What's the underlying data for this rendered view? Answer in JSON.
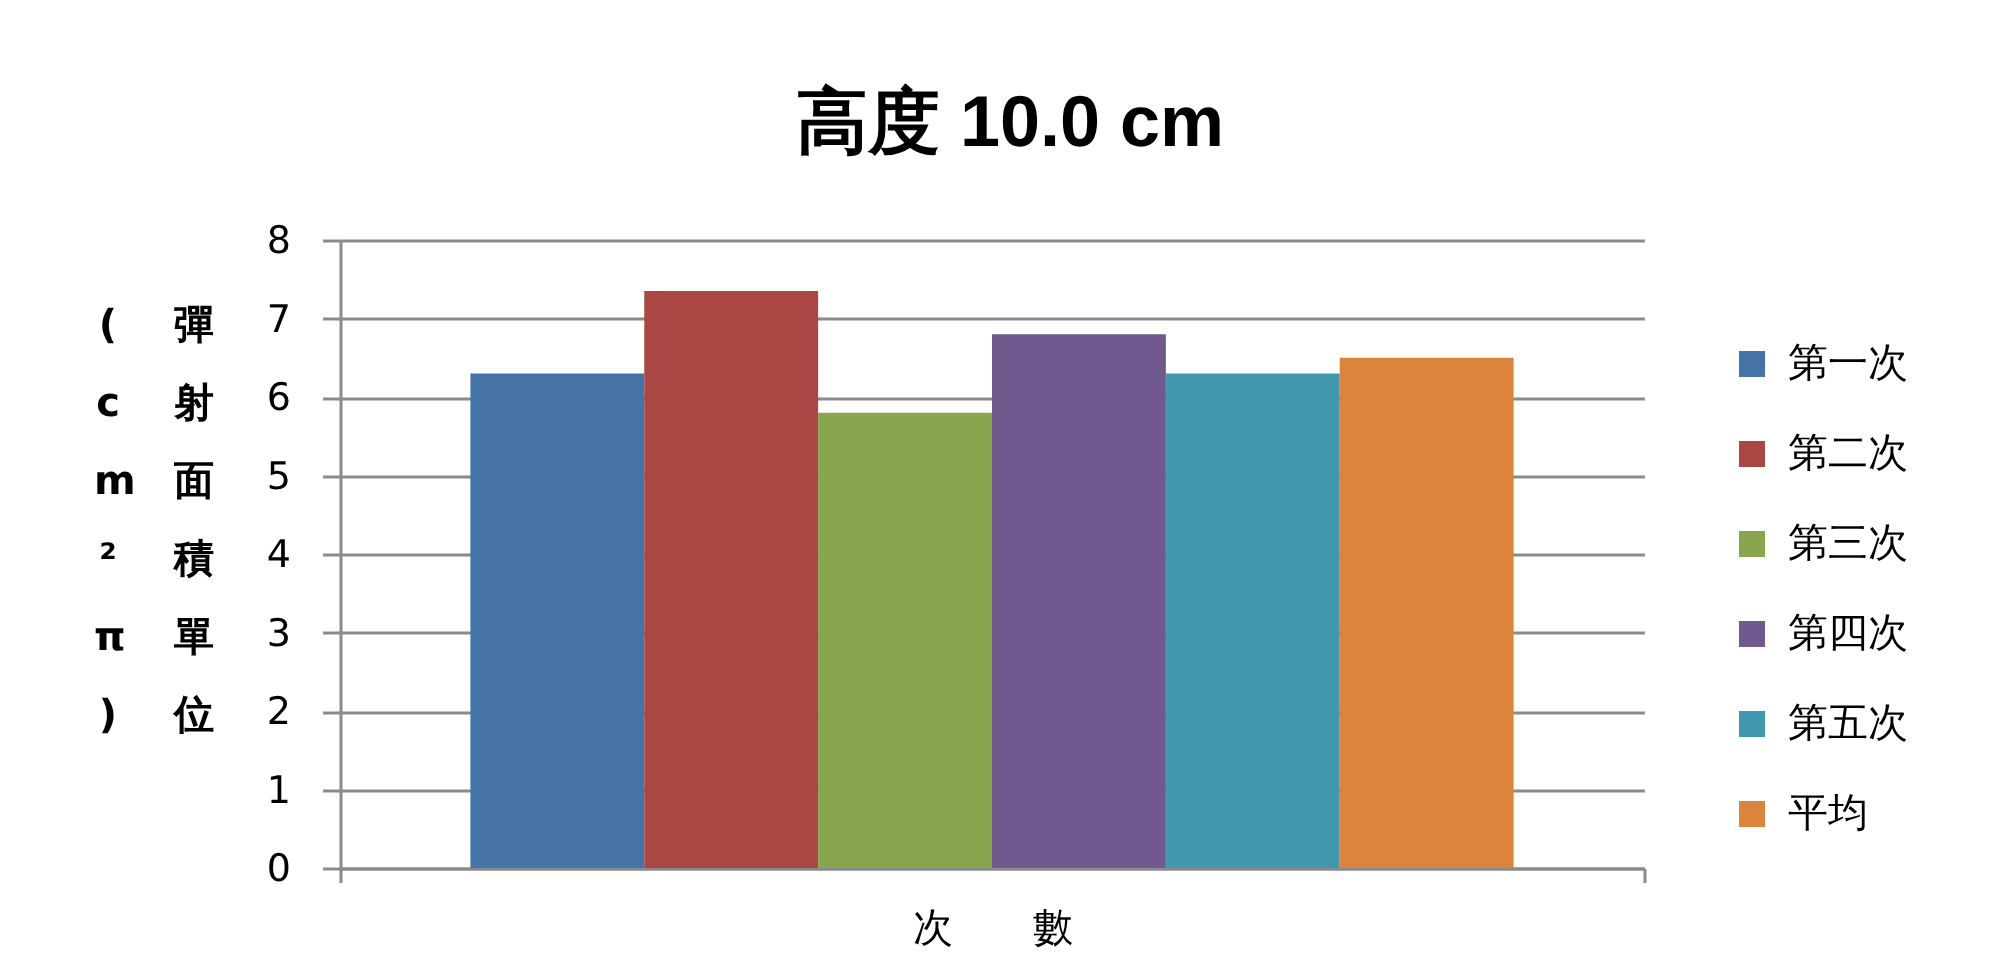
{
  "chart_data": {
    "type": "bar",
    "title": "高度 10.0 cm",
    "xlabel": "次　　數",
    "ylabel": "彈射面積單位(cm²π)",
    "categories": [
      null
    ],
    "series": [
      {
        "name": "第一次",
        "color": "#4572a7",
        "values": [
          6.3
        ]
      },
      {
        "name": "第二次",
        "color": "#aa4643",
        "values": [
          7.35
        ]
      },
      {
        "name": "第三次",
        "color": "#89a54e",
        "values": [
          5.8
        ]
      },
      {
        "name": "第四次",
        "color": "#71588f",
        "values": [
          6.8
        ]
      },
      {
        "name": "第五次",
        "color": "#4198af",
        "values": [
          6.3
        ]
      },
      {
        "name": "平均",
        "color": "#db843d",
        "values": [
          6.5
        ]
      }
    ],
    "ylim": [
      0,
      8
    ],
    "yticks": [
      0,
      1,
      2,
      3,
      4,
      5,
      6,
      7,
      8
    ],
    "grid": "y",
    "legend": "right"
  }
}
